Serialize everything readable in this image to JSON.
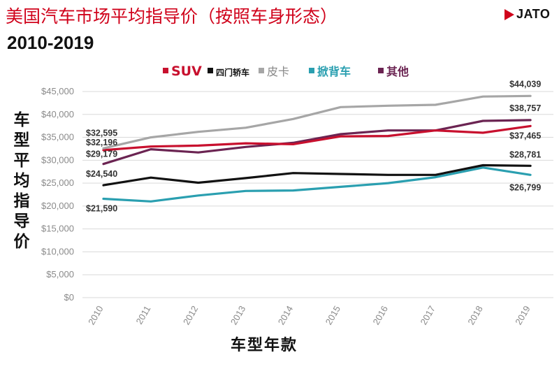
{
  "header": {
    "title": "美国汽车市场平均指导价（按照车身形态）",
    "subtitle": "2010-2019",
    "logo_text": "JATO"
  },
  "colors": {
    "suv": "#c8102e",
    "sedan": "#111111",
    "pickup": "#a6a6a6",
    "hatchback": "#2a9fb0",
    "other": "#6b2452",
    "brand": "#d0021b"
  },
  "chart_data": {
    "type": "line",
    "title": "美国汽车市场平均指导价（按照车身形态）",
    "subtitle": "2010-2019",
    "xlabel": "车型年款",
    "ylabel": "车型平均指导价",
    "x": [
      "2010",
      "2011",
      "2012",
      "2013",
      "2014",
      "2015",
      "2016",
      "2017",
      "2018",
      "2019"
    ],
    "ylim": [
      0,
      45000
    ],
    "yticks": [
      "$0",
      "$5,000",
      "$10,000",
      "$15,000",
      "$20,000",
      "$25,000",
      "$30,000",
      "$35,000",
      "$40,000",
      "$45,000"
    ],
    "grid": true,
    "legend_position": "top",
    "series": [
      {
        "name": "SUV",
        "key": "suv",
        "values": [
          32196,
          33000,
          33200,
          33700,
          33500,
          35200,
          35300,
          36500,
          36000,
          37465
        ]
      },
      {
        "name": "四门轿车",
        "key": "sedan",
        "values": [
          24540,
          26200,
          25100,
          26100,
          27200,
          27000,
          26800,
          26800,
          28900,
          28781
        ]
      },
      {
        "name": "皮卡",
        "key": "pickup",
        "values": [
          32595,
          35000,
          36200,
          37100,
          39000,
          41600,
          41900,
          42100,
          43900,
          44039
        ]
      },
      {
        "name": "掀背车",
        "key": "hatchback",
        "values": [
          21590,
          21000,
          22300,
          23300,
          23400,
          24200,
          25000,
          26300,
          28400,
          26799
        ]
      },
      {
        "name": "其他",
        "key": "other",
        "values": [
          29179,
          32400,
          31700,
          32900,
          33800,
          35700,
          36500,
          36500,
          38600,
          38757
        ]
      }
    ],
    "annotations": [
      {
        "text": "$32,595",
        "series": "pickup",
        "index": 0
      },
      {
        "text": "$32,196",
        "series": "suv",
        "index": 0
      },
      {
        "text": "$29,179",
        "series": "other",
        "index": 0
      },
      {
        "text": "$24,540",
        "series": "sedan",
        "index": 0
      },
      {
        "text": "$21,590",
        "series": "hatchback",
        "index": 0
      },
      {
        "text": "$44,039",
        "series": "pickup",
        "index": 9
      },
      {
        "text": "$38,757",
        "series": "other",
        "index": 9
      },
      {
        "text": "$37,465",
        "series": "suv",
        "index": 9
      },
      {
        "text": "$28,781",
        "series": "sedan",
        "index": 9
      },
      {
        "text": "$26,799",
        "series": "hatchback",
        "index": 9
      }
    ]
  }
}
